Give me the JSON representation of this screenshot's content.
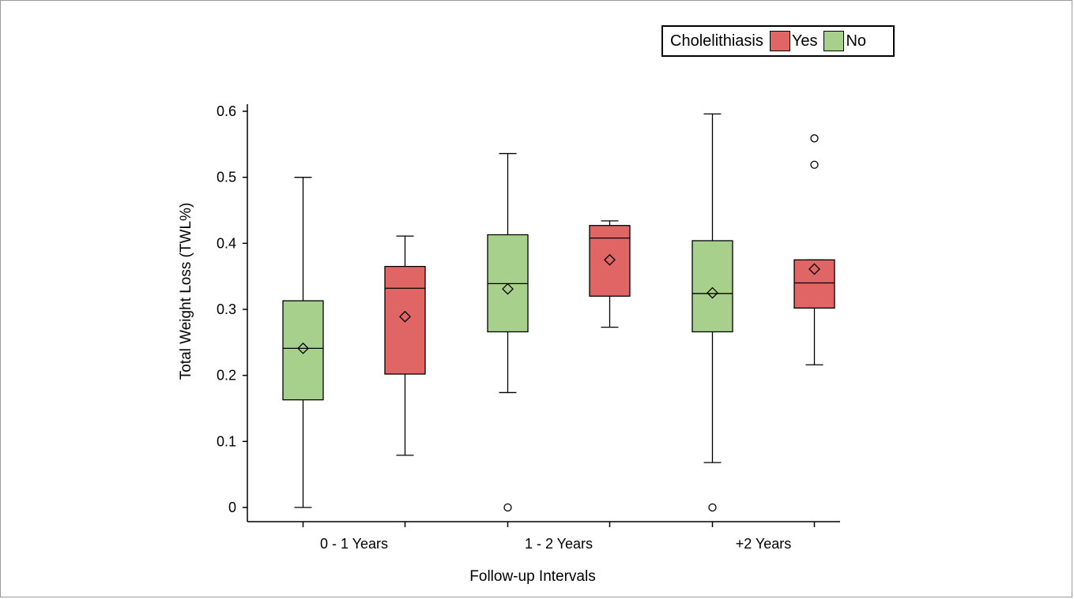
{
  "chart_data": {
    "type": "box",
    "legend": {
      "title": "Cholelithiasis",
      "placement": "top-right",
      "entries": [
        {
          "label": "Yes",
          "color": "#e06666"
        },
        {
          "label": "No",
          "color": "#a8d08d"
        }
      ]
    },
    "xlabel": "Follow-up Intervals",
    "ylabel": "Total Weight Loss (TWL%)",
    "categories": [
      "0 - 1 Years",
      "1 - 2 Years",
      "+2 Years"
    ],
    "ylim": [
      0,
      0.6
    ],
    "yticks": [
      0,
      0.1,
      0.2,
      0.3,
      0.4,
      0.5,
      0.6
    ],
    "ytick_labels": [
      "0",
      "0.1",
      "0.2",
      "0.3",
      "0.4",
      "0.5",
      "0.6"
    ],
    "grid": false,
    "series": [
      {
        "name": "No",
        "color": "#a8d08d",
        "boxes": [
          {
            "category": "0 - 1 Years",
            "min": 0.0,
            "q1": 0.163,
            "median": 0.241,
            "q3": 0.313,
            "max": 0.5,
            "mean": 0.241,
            "outliers": []
          },
          {
            "category": "1 - 2 Years",
            "min": 0.174,
            "q1": 0.266,
            "median": 0.339,
            "q3": 0.413,
            "max": 0.536,
            "mean": 0.331,
            "outliers": [
              0.0
            ]
          },
          {
            "category": "+2 Years",
            "min": 0.068,
            "q1": 0.266,
            "median": 0.324,
            "q3": 0.404,
            "max": 0.596,
            "mean": 0.325,
            "outliers": [
              0.0
            ]
          }
        ]
      },
      {
        "name": "Yes",
        "color": "#e06666",
        "boxes": [
          {
            "category": "0 - 1 Years",
            "min": 0.079,
            "q1": 0.202,
            "median": 0.332,
            "q3": 0.365,
            "max": 0.411,
            "mean": 0.289,
            "outliers": []
          },
          {
            "category": "1 - 2 Years",
            "min": 0.273,
            "q1": 0.32,
            "median": 0.408,
            "q3": 0.427,
            "max": 0.434,
            "mean": 0.375,
            "outliers": []
          },
          {
            "category": "+2 Years",
            "min": 0.216,
            "q1": 0.302,
            "median": 0.34,
            "q3": 0.375,
            "max": 0.375,
            "mean": 0.361,
            "outliers": [
              0.519,
              0.559
            ]
          }
        ]
      }
    ]
  }
}
